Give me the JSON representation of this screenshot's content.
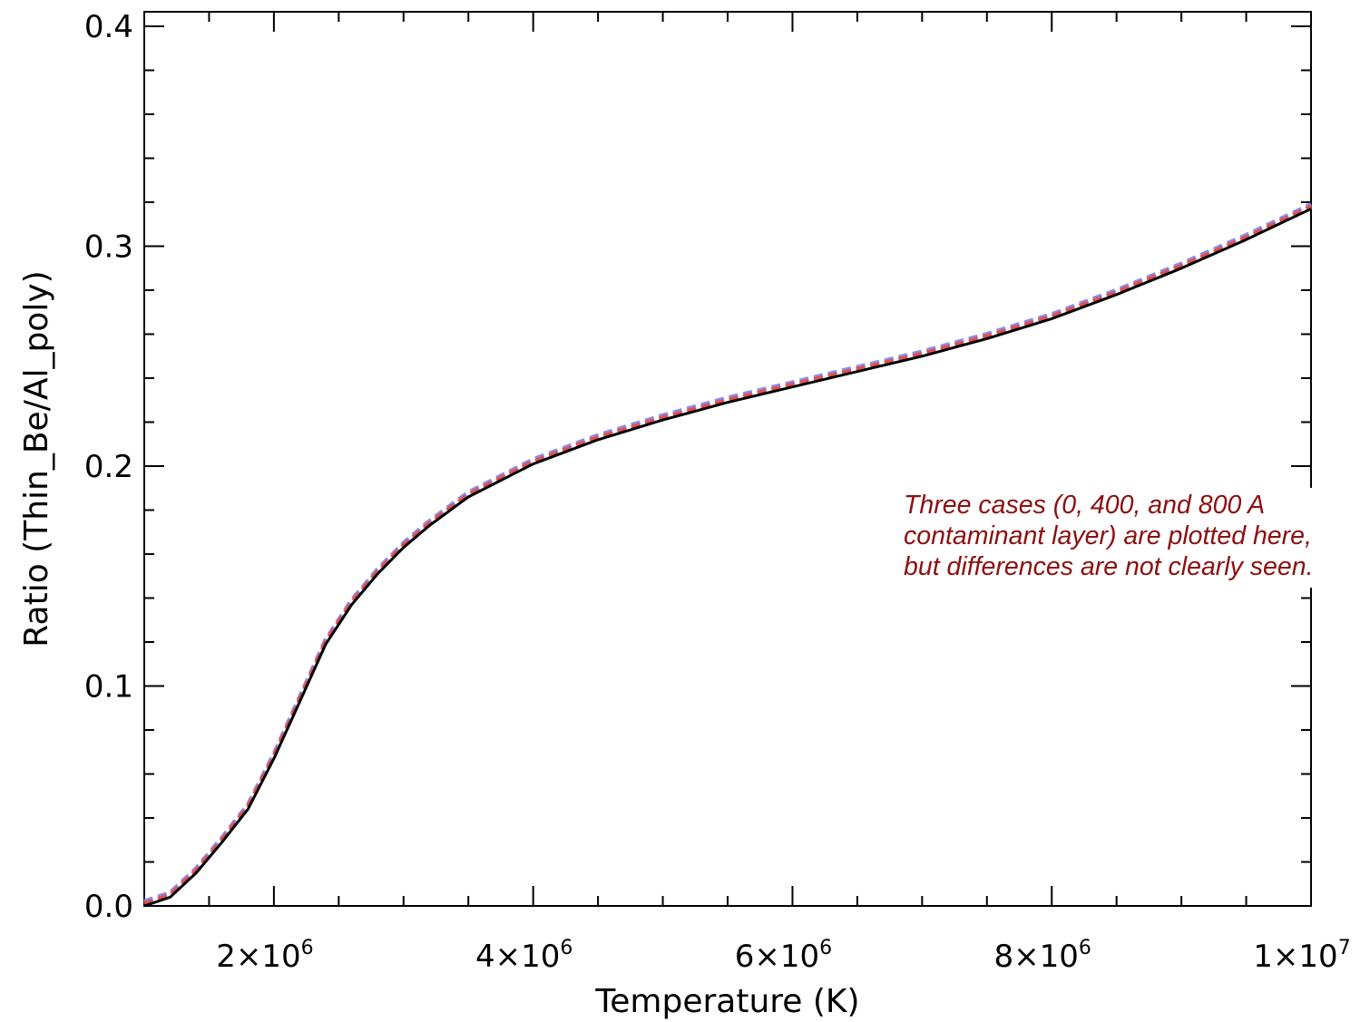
{
  "chart_data": {
    "type": "line",
    "xlabel": "Temperature (K)",
    "ylabel": "Ratio (Thin_Be/Al_poly)",
    "xlim": [
      1000000,
      10000000
    ],
    "ylim": [
      0.0,
      0.4
    ],
    "x_ticks": [
      {
        "value": 2000000,
        "mant": "2×10",
        "exp": "6"
      },
      {
        "value": 4000000,
        "mant": "4×10",
        "exp": "6"
      },
      {
        "value": 6000000,
        "mant": "6×10",
        "exp": "6"
      },
      {
        "value": 8000000,
        "mant": "8×10",
        "exp": "6"
      },
      {
        "value": 10000000,
        "mant": "1×10",
        "exp": "7"
      }
    ],
    "y_ticks": [
      {
        "value": 0.0,
        "label": "0.0"
      },
      {
        "value": 0.1,
        "label": "0.1"
      },
      {
        "value": 0.2,
        "label": "0.2"
      },
      {
        "value": 0.3,
        "label": "0.3"
      },
      {
        "value": 0.4,
        "label": "0.4"
      }
    ],
    "grid": false,
    "series": [
      {
        "color": "#8a8cf0",
        "style": "dashed",
        "x": [
          1000000,
          1200000,
          1400000,
          1600000,
          1800000,
          2000000,
          2200000,
          2400000,
          2600000,
          2800000,
          3000000,
          3200000,
          3500000,
          4000000,
          4500000,
          5000000,
          5500000,
          6000000,
          6500000,
          7000000,
          7500000,
          8000000,
          8500000,
          9000000,
          9500000,
          10000000
        ],
        "y": [
          0.002,
          0.006,
          0.017,
          0.031,
          0.046,
          0.069,
          0.095,
          0.121,
          0.139,
          0.153,
          0.165,
          0.175,
          0.188,
          0.203,
          0.214,
          0.223,
          0.231,
          0.238,
          0.245,
          0.252,
          0.26,
          0.269,
          0.28,
          0.292,
          0.305,
          0.319
        ]
      },
      {
        "color": "#e05050",
        "style": "dashed",
        "x": [
          1000000,
          1200000,
          1400000,
          1600000,
          1800000,
          2000000,
          2200000,
          2400000,
          2600000,
          2800000,
          3000000,
          3200000,
          3500000,
          4000000,
          4500000,
          5000000,
          5500000,
          6000000,
          6500000,
          7000000,
          7500000,
          8000000,
          8500000,
          9000000,
          9500000,
          10000000
        ],
        "y": [
          0.001,
          0.005,
          0.016,
          0.03,
          0.045,
          0.068,
          0.094,
          0.12,
          0.138,
          0.152,
          0.164,
          0.174,
          0.187,
          0.202,
          0.213,
          0.222,
          0.23,
          0.237,
          0.244,
          0.251,
          0.259,
          0.268,
          0.279,
          0.291,
          0.304,
          0.318
        ]
      },
      {
        "color": "#000000",
        "style": "solid",
        "x": [
          1000000,
          1200000,
          1400000,
          1600000,
          1800000,
          2000000,
          2200000,
          2400000,
          2600000,
          2800000,
          3000000,
          3200000,
          3500000,
          4000000,
          4500000,
          5000000,
          5500000,
          6000000,
          6500000,
          7000000,
          7500000,
          8000000,
          8500000,
          9000000,
          9500000,
          10000000
        ],
        "y": [
          0.0,
          0.004,
          0.015,
          0.029,
          0.044,
          0.067,
          0.093,
          0.119,
          0.137,
          0.151,
          0.163,
          0.173,
          0.186,
          0.201,
          0.212,
          0.221,
          0.229,
          0.236,
          0.243,
          0.25,
          0.258,
          0.267,
          0.278,
          0.29,
          0.303,
          0.317
        ]
      }
    ]
  },
  "annotation": {
    "line1": "Three cases (0, 400, and 800 A",
    "line2": "contaminant layer) are plotted here,",
    "line3": "but differences are not clearly seen."
  }
}
